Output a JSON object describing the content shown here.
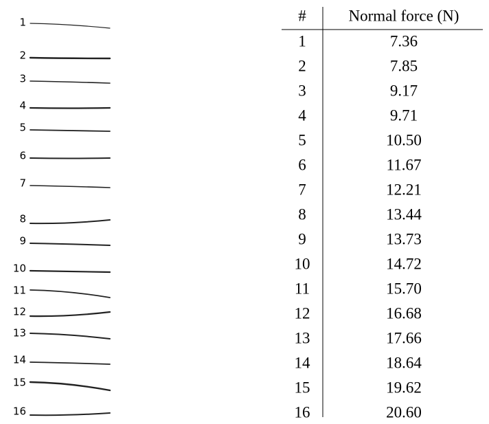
{
  "figure": {
    "stroke_labels": [
      "1",
      "2",
      "3",
      "4",
      "5",
      "6",
      "7",
      "8",
      "9",
      "10",
      "11",
      "12",
      "13",
      "14",
      "15",
      "16"
    ],
    "table": {
      "header": [
        "#",
        "Normal force (N)"
      ],
      "rows": [
        [
          "1",
          "7.36"
        ],
        [
          "2",
          "7.85"
        ],
        [
          "3",
          "9.17"
        ],
        [
          "4",
          "9.71"
        ],
        [
          "5",
          "10.50"
        ],
        [
          "6",
          "11.67"
        ],
        [
          "7",
          "12.21"
        ],
        [
          "8",
          "13.44"
        ],
        [
          "9",
          "13.73"
        ],
        [
          "10",
          "14.72"
        ],
        [
          "11",
          "15.70"
        ],
        [
          "12",
          "16.68"
        ],
        [
          "13",
          "17.66"
        ],
        [
          "14",
          "18.64"
        ],
        [
          "15",
          "19.62"
        ],
        [
          "16",
          "20.60"
        ]
      ]
    }
  }
}
